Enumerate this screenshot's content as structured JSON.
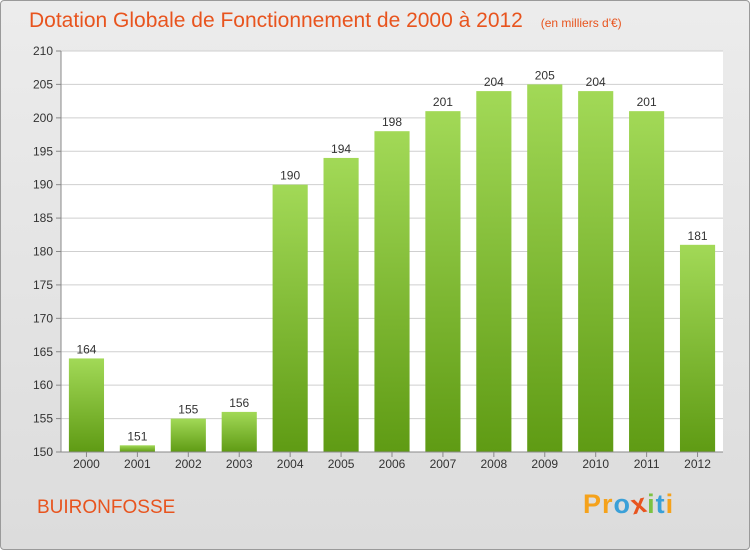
{
  "title": "Dotation Globale de Fonctionnement de 2000 à 2012",
  "subtitle": "(en milliers d'€)",
  "commune": "BUIRONFOSSE",
  "brand": {
    "text": "Proxiti",
    "letters": [
      {
        "ch": "P",
        "color": "#f5a21b"
      },
      {
        "ch": "r",
        "color": "#f5a21b"
      },
      {
        "ch": "o",
        "color": "#3aa0d8"
      },
      {
        "ch": "x",
        "color": "#e8541e"
      },
      {
        "ch": "i",
        "color": "#7cc242"
      },
      {
        "ch": "t",
        "color": "#3aa0d8"
      },
      {
        "ch": "i",
        "color": "#f5a21b"
      }
    ]
  },
  "colors": {
    "accent": "#e8541e",
    "bar_top": "#a2d957",
    "bar_bottom": "#5f9b14",
    "grid": "#cfcfcf",
    "axis": "#888888",
    "text": "#333333"
  },
  "chart_data": {
    "type": "bar",
    "categories": [
      "2000",
      "2001",
      "2002",
      "2003",
      "2004",
      "2005",
      "2006",
      "2007",
      "2008",
      "2009",
      "2010",
      "2011",
      "2012"
    ],
    "values": [
      164,
      151,
      155,
      156,
      190,
      194,
      198,
      201,
      204,
      205,
      204,
      201,
      181
    ],
    "title": "Dotation Globale de Fonctionnement de 2000 à 2012",
    "xlabel": "",
    "ylabel": "",
    "ylim": [
      150,
      210
    ],
    "yticks": [
      150,
      155,
      160,
      165,
      170,
      175,
      180,
      185,
      190,
      195,
      200,
      205,
      210
    ],
    "grid": true,
    "legend": "none"
  }
}
